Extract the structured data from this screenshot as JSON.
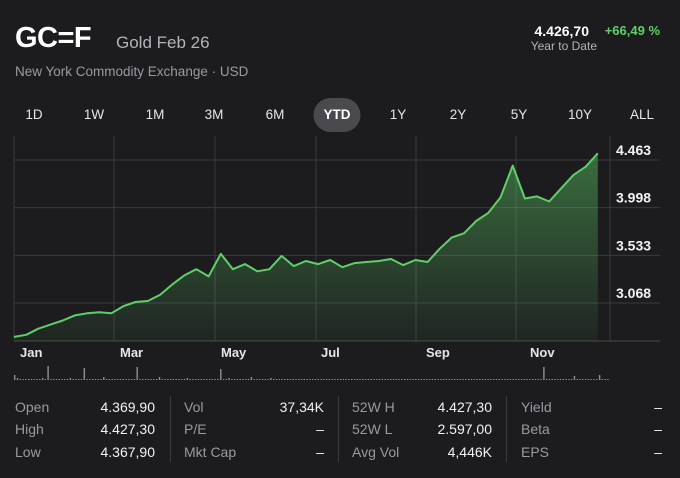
{
  "header": {
    "symbol": "GC=F",
    "name": "Gold Feb 26",
    "exchange": "New York Commodity Exchange · USD",
    "price": "4.426,70",
    "change": "+66,49 %",
    "period_label": "Year to Date",
    "accent_color": "#5fd068"
  },
  "tabs": [
    "1D",
    "1W",
    "1M",
    "3M",
    "6M",
    "YTD",
    "1Y",
    "2Y",
    "5Y",
    "10Y",
    "ALL"
  ],
  "selected_tab": "YTD",
  "chart_data": {
    "type": "area",
    "x_labels": [
      "Jan",
      "Mar",
      "May",
      "Jul",
      "Sep",
      "Nov"
    ],
    "y_labels": [
      "4.463",
      "3.998",
      "3.533",
      "3.068"
    ],
    "y_ticks": [
      4463,
      3998,
      3533,
      3068
    ],
    "ylim": [
      2600,
      4560
    ],
    "xlim": [
      0,
      49
    ],
    "x_unit": "week",
    "grid": true,
    "line_color": "#5fd068",
    "x": [
      0,
      1,
      2,
      3,
      4,
      5,
      6,
      7,
      8,
      9,
      10,
      11,
      12,
      13,
      14,
      15,
      16,
      17,
      18,
      19,
      20,
      21,
      22,
      23,
      24,
      25,
      26,
      27,
      28,
      29,
      30,
      31,
      32,
      33,
      34,
      35,
      36,
      37,
      38,
      39,
      40,
      41,
      42,
      43,
      44,
      45,
      46,
      47,
      48
    ],
    "values": [
      2640,
      2660,
      2720,
      2760,
      2800,
      2850,
      2870,
      2880,
      2870,
      2940,
      2980,
      2990,
      3050,
      3150,
      3240,
      3300,
      3230,
      3450,
      3300,
      3350,
      3280,
      3300,
      3430,
      3330,
      3380,
      3350,
      3390,
      3320,
      3360,
      3370,
      3380,
      3400,
      3340,
      3390,
      3370,
      3500,
      3610,
      3650,
      3770,
      3850,
      4000,
      4310,
      3990,
      4010,
      3960,
      4090,
      4220,
      4300,
      4430
    ]
  },
  "volume_data": {
    "type": "bar",
    "values": [
      5,
      2,
      1,
      1,
      1,
      1,
      1,
      1,
      1,
      1,
      2,
      1,
      14,
      1,
      1,
      1,
      1,
      1,
      1,
      1,
      2,
      1,
      1,
      1,
      1,
      12,
      1,
      1,
      1,
      1,
      1,
      1,
      3,
      1,
      1,
      1,
      1,
      1,
      1,
      1,
      1,
      1,
      1,
      1,
      13,
      1,
      1,
      1,
      1,
      1,
      1,
      1,
      3,
      1,
      1,
      1,
      1,
      1,
      1,
      1,
      1,
      1,
      2,
      1,
      1,
      1,
      1,
      1,
      1,
      1,
      1,
      1,
      1,
      1,
      11,
      1,
      1,
      2,
      1,
      1,
      1,
      1,
      1,
      1,
      1,
      3,
      1,
      1,
      1,
      1,
      1,
      1,
      2,
      1,
      1,
      1,
      1,
      1,
      1,
      1,
      1,
      1,
      1,
      1,
      1,
      1,
      1,
      1,
      1,
      1,
      1,
      1,
      1,
      1,
      1,
      1,
      1,
      1,
      1,
      1,
      1,
      1,
      1,
      1,
      1,
      1,
      1,
      1,
      1,
      1,
      1,
      1,
      1,
      1,
      1,
      1,
      1,
      1,
      1,
      1,
      1,
      1,
      1,
      1,
      1,
      1,
      1,
      1,
      1,
      1,
      1,
      1,
      1,
      1,
      1,
      1,
      1,
      1,
      1,
      1,
      1,
      1,
      1,
      1,
      1,
      1,
      1,
      1,
      1,
      1,
      1,
      1,
      1,
      1,
      1,
      1,
      1,
      1,
      1,
      1,
      1,
      1,
      1,
      1,
      1,
      1,
      1,
      1,
      1,
      1,
      13,
      1,
      1,
      1,
      1,
      1,
      1,
      1,
      1,
      1,
      1,
      4,
      1,
      1,
      1,
      1,
      1,
      1,
      1,
      1,
      5,
      1,
      1,
      1
    ]
  },
  "stats": [
    [
      {
        "k": "Open",
        "v": "4.369,90"
      },
      {
        "k": "High",
        "v": "4.427,30"
      },
      {
        "k": "Low",
        "v": "4.367,90"
      }
    ],
    [
      {
        "k": "Vol",
        "v": "37,34K"
      },
      {
        "k": "P/E",
        "v": "–"
      },
      {
        "k": "Mkt Cap",
        "v": "–"
      }
    ],
    [
      {
        "k": "52W H",
        "v": "4.427,30"
      },
      {
        "k": "52W L",
        "v": "2.597,00"
      },
      {
        "k": "Avg Vol",
        "v": "4,446K"
      }
    ],
    [
      {
        "k": "Yield",
        "v": "–"
      },
      {
        "k": "Beta",
        "v": "–"
      },
      {
        "k": "EPS",
        "v": "–"
      }
    ]
  ]
}
